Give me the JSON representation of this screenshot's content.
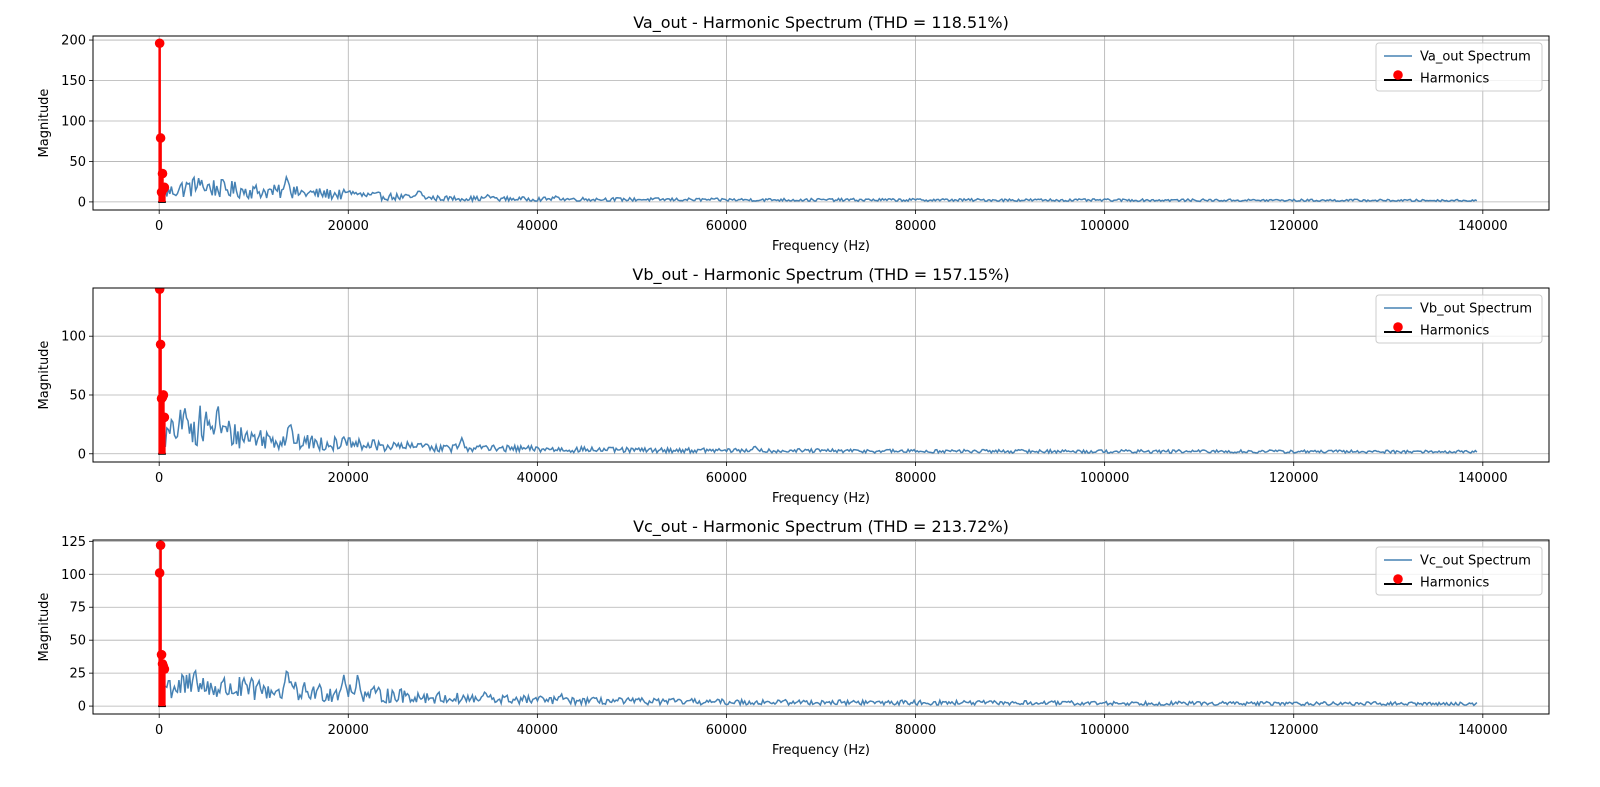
{
  "colors": {
    "spectrum": "#4682b4",
    "harmonics_marker": "#ff0000",
    "harmonics_baseline": "#000000",
    "grid": "#b0b0b0",
    "axes": "#000000"
  },
  "chart_data": [
    {
      "type": "line",
      "title": "Va_out - Harmonic Spectrum (THD = 118.51%)",
      "xlabel": "Frequency (Hz)",
      "ylabel": "Magnitude",
      "xlim": [
        -7000,
        147000
      ],
      "ylim": [
        -10,
        205
      ],
      "xticks": [
        0,
        20000,
        40000,
        60000,
        80000,
        100000,
        120000,
        140000
      ],
      "yticks": [
        0,
        50,
        100,
        150,
        200
      ],
      "grid": true,
      "legend_position": "top-right",
      "series": [
        {
          "name": "Va_out Spectrum",
          "kind": "line",
          "profile": {
            "fmax": 139500,
            "envelope": [
              [
                500,
                12
              ],
              [
                2000,
                18
              ],
              [
                4000,
                22
              ],
              [
                7000,
                18
              ],
              [
                10000,
                15
              ],
              [
                13000,
                14
              ],
              [
                16000,
                12
              ],
              [
                20000,
                10
              ],
              [
                25000,
                7
              ],
              [
                30000,
                5
              ],
              [
                40000,
                4
              ],
              [
                60000,
                3
              ],
              [
                100000,
                2.5
              ],
              [
                139500,
                2
              ]
            ],
            "spikes": [
              [
                4500,
                28
              ],
              [
                13500,
                36
              ],
              [
                20500,
                16
              ],
              [
                27500,
                18
              ],
              [
                34800,
                10
              ],
              [
                42000,
                8
              ]
            ]
          }
        },
        {
          "name": "Harmonics",
          "kind": "stem",
          "x": [
            50,
            150,
            250,
            350,
            450,
            550
          ],
          "y": [
            196,
            79,
            12,
            35,
            16,
            18
          ]
        }
      ]
    },
    {
      "type": "line",
      "title": "Vb_out - Harmonic Spectrum (THD = 157.15%)",
      "xlabel": "Frequency (Hz)",
      "ylabel": "Magnitude",
      "xlim": [
        -7000,
        147000
      ],
      "ylim": [
        -7,
        141
      ],
      "xticks": [
        0,
        20000,
        40000,
        60000,
        80000,
        100000,
        120000,
        140000
      ],
      "yticks": [
        0,
        50,
        100
      ],
      "grid": true,
      "legend_position": "top-right",
      "series": [
        {
          "name": "Vb_out Spectrum",
          "kind": "line",
          "profile": {
            "fmax": 139500,
            "envelope": [
              [
                500,
                15
              ],
              [
                2000,
                25
              ],
              [
                5000,
                28
              ],
              [
                8000,
                18
              ],
              [
                12000,
                14
              ],
              [
                16000,
                11
              ],
              [
                20000,
                9
              ],
              [
                25000,
                7
              ],
              [
                30000,
                6
              ],
              [
                35000,
                5
              ],
              [
                50000,
                3.5
              ],
              [
                80000,
                2.5
              ],
              [
                139500,
                2
              ]
            ],
            "spikes": [
              [
                2800,
                44
              ],
              [
                6200,
                45
              ],
              [
                13800,
                33
              ],
              [
                19500,
                16
              ],
              [
                27500,
                12
              ],
              [
                32000,
                14
              ],
              [
                34500,
                9
              ],
              [
                63000,
                7
              ]
            ]
          }
        },
        {
          "name": "Harmonics",
          "kind": "stem",
          "x": [
            50,
            150,
            250,
            350,
            450,
            550
          ],
          "y": [
            140,
            93,
            47,
            48,
            50,
            31
          ]
        }
      ]
    },
    {
      "type": "line",
      "title": "Vc_out - Harmonic Spectrum (THD = 213.72%)",
      "xlabel": "Frequency (Hz)",
      "ylabel": "Magnitude",
      "xlim": [
        -7000,
        147000
      ],
      "ylim": [
        -6,
        126
      ],
      "xticks": [
        0,
        20000,
        40000,
        60000,
        80000,
        100000,
        120000,
        140000
      ],
      "yticks": [
        0,
        25,
        50,
        75,
        100,
        125
      ],
      "grid": true,
      "legend_position": "top-right",
      "series": [
        {
          "name": "Vc_out Spectrum",
          "kind": "line",
          "profile": {
            "fmax": 139500,
            "envelope": [
              [
                500,
                18
              ],
              [
                2000,
                17
              ],
              [
                4000,
                17
              ],
              [
                8000,
                15
              ],
              [
                12000,
                13
              ],
              [
                16000,
                12
              ],
              [
                20000,
                11
              ],
              [
                25000,
                9
              ],
              [
                30000,
                7
              ],
              [
                35000,
                6
              ],
              [
                45000,
                4.5
              ],
              [
                60000,
                3.5
              ],
              [
                100000,
                2.5
              ],
              [
                139500,
                2
              ]
            ],
            "spikes": [
              [
                3800,
                31
              ],
              [
                13500,
                31
              ],
              [
                19500,
                27
              ],
              [
                21000,
                26
              ],
              [
                34500,
                13
              ],
              [
                42500,
                11
              ]
            ]
          }
        },
        {
          "name": "Harmonics",
          "kind": "stem",
          "x": [
            50,
            150,
            250,
            350,
            450,
            550
          ],
          "y": [
            101,
            122,
            39,
            32,
            30,
            28
          ]
        }
      ]
    }
  ]
}
